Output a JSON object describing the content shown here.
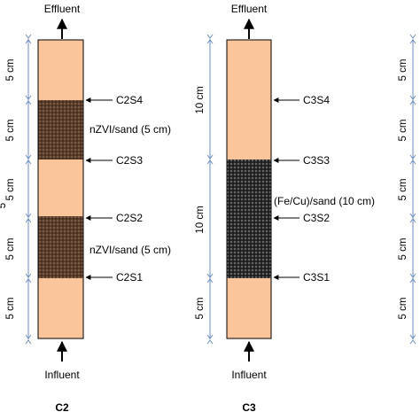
{
  "colors": {
    "sand": "#FBC59B",
    "column_outline": "#000000",
    "dimension_line": "#6C8EBF",
    "nzvi_fill": "#5A3E2B",
    "fecu_fill": "#2B2B2B"
  },
  "columns": [
    {
      "id": "c2",
      "name": "C2",
      "top_label": "Effluent",
      "bottom_label": "Influent",
      "segments": [
        {
          "length": "5 cm",
          "material": "sand"
        },
        {
          "length": "5 cm",
          "material": "nzvi"
        },
        {
          "length": "5 cm",
          "material": "sand"
        },
        {
          "length": "5 cm",
          "material": "nzvi"
        },
        {
          "length": "5 cm",
          "material": "sand"
        }
      ],
      "ports": [
        "C2S4",
        "C2S3",
        "C2S2",
        "C2S1"
      ],
      "media_labels": [
        "nZVI/sand (5 cm)",
        "nZVI/sand (5 cm)"
      ]
    },
    {
      "id": "c3",
      "name": "C3",
      "top_label": "Effluent",
      "bottom_label": "Influent",
      "segments": [
        {
          "length": "10 cm",
          "material": "sand"
        },
        {
          "length": "10 cm",
          "material": "fecu"
        },
        {
          "length": "5 cm",
          "material": "sand"
        }
      ],
      "ports": [
        "C3S4",
        "C3S3",
        "C3S2",
        "C3S1"
      ],
      "media_labels": [
        "(Fe/Cu)/sand (10 cm)"
      ]
    }
  ],
  "right_scale": [
    "5 cm",
    "5 cm",
    "5 cm",
    "5 cm",
    "5 cm"
  ],
  "left_partial_label": "5"
}
